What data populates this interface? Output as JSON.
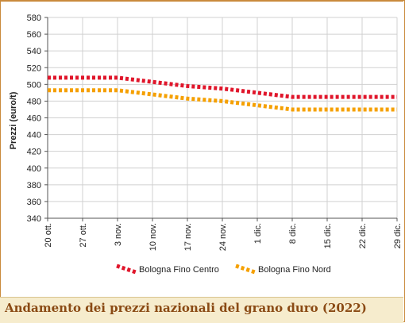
{
  "caption": "Andamento dei prezzi nazionali del grano duro (2022)",
  "chart_data": {
    "type": "line",
    "title": "",
    "ylabel": "Prezzi (euro/t)",
    "xlabel": "",
    "ylim": [
      340,
      580
    ],
    "yticks": [
      340,
      360,
      380,
      400,
      420,
      440,
      460,
      480,
      500,
      520,
      540,
      560,
      580
    ],
    "categories": [
      "20 ott.",
      "27 ott.",
      "3 nov.",
      "10 nov.",
      "17 nov.",
      "24 nov.",
      "1 dic.",
      "8 dic.",
      "15 dic.",
      "22 dic.",
      "29 dic."
    ],
    "grid": true,
    "legend_position": "bottom",
    "series": [
      {
        "name": "Bologna Fino Centro",
        "color": "#e0162b",
        "values": [
          508,
          508,
          508,
          503,
          498,
          495,
          490,
          485,
          485,
          485,
          485
        ]
      },
      {
        "name": "Bologna Fino Nord",
        "color": "#f5a000",
        "values": [
          493,
          493,
          493,
          488,
          483,
          480,
          475,
          470,
          470,
          470,
          470
        ]
      }
    ]
  }
}
